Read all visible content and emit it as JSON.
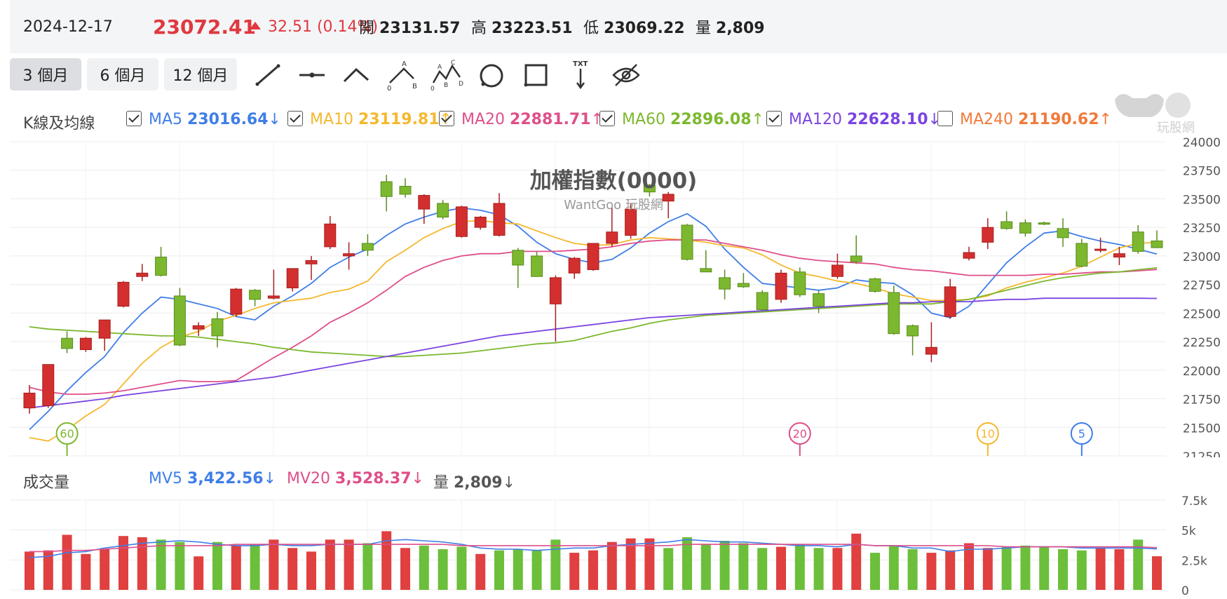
{
  "quote": {
    "date": "2024-12-17",
    "price": "23072.41",
    "change": "32.51 (0.14%)",
    "open_label": "開",
    "open": "23131.57",
    "high_label": "高",
    "high": "23223.51",
    "low_label": "低",
    "low": "23069.22",
    "volume_label": "量",
    "volume": "2,809",
    "up_color": "#e0383e"
  },
  "periods": [
    {
      "label": "3 個月",
      "active": true
    },
    {
      "label": "6 個月",
      "active": false
    },
    {
      "label": "12 個月",
      "active": false
    }
  ],
  "tools": [
    "line-tool-icon",
    "horizontal-line-tool-icon",
    "angle-tool-icon",
    "abc-pattern-tool-icon",
    "abcd-pattern-tool-icon",
    "circle-tool-icon",
    "rectangle-tool-icon",
    "text-arrow-tool-icon",
    "hide-drawings-icon"
  ],
  "tool_labels": {
    "abc": [
      "A",
      "0",
      "B"
    ],
    "abcd": [
      "A",
      "C",
      "0",
      "B",
      "D"
    ],
    "txt": "TXT"
  },
  "ma_section": {
    "title": "K線及均線",
    "items": [
      {
        "name": "MA5",
        "value": "23016.64",
        "arrow": "↓",
        "checked": true,
        "color": "#3f7ee8"
      },
      {
        "name": "MA10",
        "value": "23119.81",
        "arrow": "↑",
        "checked": true,
        "color": "#f5b82e"
      },
      {
        "name": "MA20",
        "value": "22881.71",
        "arrow": "↑",
        "checked": true,
        "color": "#de4f8a"
      },
      {
        "name": "MA60",
        "value": "22896.08",
        "arrow": "↑",
        "checked": true,
        "color": "#7cb82f"
      },
      {
        "name": "MA120",
        "value": "22628.10",
        "arrow": "↓",
        "checked": true,
        "color": "#7b44e0"
      },
      {
        "name": "MA240",
        "value": "21190.62",
        "arrow": "↑",
        "checked": false,
        "color": "#f07a3a"
      }
    ]
  },
  "logo_text": "玩股網",
  "volume_section": {
    "title": "成交量",
    "items": [
      {
        "name": "MV5",
        "value": "3,422.56",
        "arrow": "↓",
        "color": "#3f7ee8"
      },
      {
        "name": "MV20",
        "value": "3,528.37",
        "arrow": "↓",
        "color": "#de4f8a"
      },
      {
        "name": "量",
        "value": "2,809",
        "arrow": "↓",
        "color": "#555555"
      }
    ]
  },
  "chart_data": {
    "type": "candlestick",
    "title": "加權指數(0000)",
    "subtitle": "WantGoo 玩股網",
    "y_ticks": [
      "24000",
      "23750",
      "23500",
      "23250",
      "23000",
      "22750",
      "22500",
      "22250",
      "22000",
      "21750",
      "21500",
      "21250"
    ],
    "ylim": [
      21250,
      24000
    ],
    "up_color": "#d32f2f",
    "down_color": "#7cb82f",
    "candles": [
      {
        "o": 21670,
        "h": 21870,
        "l": 21620,
        "c": 21800
      },
      {
        "o": 21690,
        "h": 22050,
        "l": 21670,
        "c": 22050
      },
      {
        "o": 22280,
        "h": 22340,
        "l": 22150,
        "c": 22190
      },
      {
        "o": 22180,
        "h": 22290,
        "l": 22160,
        "c": 22280
      },
      {
        "o": 22280,
        "h": 22440,
        "l": 22170,
        "c": 22440
      },
      {
        "o": 22560,
        "h": 22780,
        "l": 22550,
        "c": 22770
      },
      {
        "o": 22820,
        "h": 22930,
        "l": 22780,
        "c": 22850
      },
      {
        "o": 22990,
        "h": 23080,
        "l": 22820,
        "c": 22830
      },
      {
        "o": 22650,
        "h": 22720,
        "l": 22210,
        "c": 22220
      },
      {
        "o": 22360,
        "h": 22420,
        "l": 22300,
        "c": 22390
      },
      {
        "o": 22450,
        "h": 22510,
        "l": 22200,
        "c": 22300
      },
      {
        "o": 22490,
        "h": 22720,
        "l": 22470,
        "c": 22710
      },
      {
        "o": 22700,
        "h": 22710,
        "l": 22560,
        "c": 22620
      },
      {
        "o": 22630,
        "h": 22880,
        "l": 22620,
        "c": 22650
      },
      {
        "o": 22720,
        "h": 22890,
        "l": 22690,
        "c": 22890
      },
      {
        "o": 22930,
        "h": 23000,
        "l": 22790,
        "c": 22960
      },
      {
        "o": 23080,
        "h": 23350,
        "l": 23060,
        "c": 23280
      },
      {
        "o": 23000,
        "h": 23120,
        "l": 22880,
        "c": 23020
      },
      {
        "o": 23110,
        "h": 23190,
        "l": 23000,
        "c": 23050
      },
      {
        "o": 23650,
        "h": 23710,
        "l": 23390,
        "c": 23520
      },
      {
        "o": 23610,
        "h": 23680,
        "l": 23510,
        "c": 23540
      },
      {
        "o": 23410,
        "h": 23540,
        "l": 23280,
        "c": 23530
      },
      {
        "o": 23460,
        "h": 23490,
        "l": 23320,
        "c": 23340
      },
      {
        "o": 23170,
        "h": 23440,
        "l": 23160,
        "c": 23430
      },
      {
        "o": 23250,
        "h": 23350,
        "l": 23230,
        "c": 23340
      },
      {
        "o": 23180,
        "h": 23550,
        "l": 23170,
        "c": 23460
      },
      {
        "o": 23050,
        "h": 23070,
        "l": 22720,
        "c": 22920
      },
      {
        "o": 23000,
        "h": 23040,
        "l": 22820,
        "c": 22820
      },
      {
        "o": 22580,
        "h": 22830,
        "l": 22250,
        "c": 22810
      },
      {
        "o": 22850,
        "h": 22990,
        "l": 22800,
        "c": 22980
      },
      {
        "o": 22880,
        "h": 23110,
        "l": 22870,
        "c": 23110
      },
      {
        "o": 23110,
        "h": 23420,
        "l": 23080,
        "c": 23210
      },
      {
        "o": 23180,
        "h": 23460,
        "l": 23150,
        "c": 23410
      },
      {
        "o": 23620,
        "h": 23630,
        "l": 23520,
        "c": 23560
      },
      {
        "o": 23480,
        "h": 23560,
        "l": 23330,
        "c": 23540
      },
      {
        "o": 23270,
        "h": 23280,
        "l": 22960,
        "c": 22970
      },
      {
        "o": 22890,
        "h": 23050,
        "l": 22880,
        "c": 22860
      },
      {
        "o": 22810,
        "h": 22880,
        "l": 22620,
        "c": 22710
      },
      {
        "o": 22760,
        "h": 22850,
        "l": 22720,
        "c": 22730
      },
      {
        "o": 22680,
        "h": 22700,
        "l": 22520,
        "c": 22530
      },
      {
        "o": 22620,
        "h": 22880,
        "l": 22590,
        "c": 22850
      },
      {
        "o": 22860,
        "h": 22900,
        "l": 22640,
        "c": 22660
      },
      {
        "o": 22670,
        "h": 22700,
        "l": 22500,
        "c": 22560
      },
      {
        "o": 22820,
        "h": 23020,
        "l": 22800,
        "c": 22920
      },
      {
        "o": 23000,
        "h": 23180,
        "l": 22930,
        "c": 22950
      },
      {
        "o": 22800,
        "h": 22810,
        "l": 22680,
        "c": 22690
      },
      {
        "o": 22680,
        "h": 22740,
        "l": 22310,
        "c": 22320
      },
      {
        "o": 22390,
        "h": 22400,
        "l": 22130,
        "c": 22300
      },
      {
        "o": 22140,
        "h": 22420,
        "l": 22070,
        "c": 22200
      },
      {
        "o": 22470,
        "h": 22800,
        "l": 22450,
        "c": 22730
      },
      {
        "o": 22980,
        "h": 23080,
        "l": 22960,
        "c": 23030
      },
      {
        "o": 23120,
        "h": 23330,
        "l": 23060,
        "c": 23250
      },
      {
        "o": 23300,
        "h": 23390,
        "l": 23230,
        "c": 23240
      },
      {
        "o": 23290,
        "h": 23320,
        "l": 23170,
        "c": 23200
      },
      {
        "o": 23290,
        "h": 23300,
        "l": 23270,
        "c": 23280
      },
      {
        "o": 23240,
        "h": 23330,
        "l": 23080,
        "c": 23160
      },
      {
        "o": 23110,
        "h": 23150,
        "l": 22900,
        "c": 22910
      },
      {
        "o": 23050,
        "h": 23160,
        "l": 23030,
        "c": 23060
      },
      {
        "o": 22990,
        "h": 23080,
        "l": 22920,
        "c": 23020
      },
      {
        "o": 23210,
        "h": 23270,
        "l": 23020,
        "c": 23040
      },
      {
        "o": 23131.57,
        "h": 23223.51,
        "l": 23069.22,
        "c": 23072.41
      }
    ],
    "ma_lines": [
      {
        "name": "MA5",
        "color": "#3f7ee8",
        "values": [
          21480,
          21640,
          21820,
          21980,
          22120,
          22330,
          22500,
          22640,
          22620,
          22580,
          22540,
          22470,
          22440,
          22560,
          22650,
          22760,
          22900,
          22990,
          23060,
          23180,
          23280,
          23340,
          23390,
          23420,
          23400,
          23360,
          23260,
          23120,
          23020,
          22970,
          22940,
          22970,
          23070,
          23200,
          23300,
          23370,
          23260,
          23060,
          22900,
          22760,
          22740,
          22720,
          22700,
          22720,
          22790,
          22770,
          22760,
          22660,
          22500,
          22460,
          22560,
          22750,
          22940,
          23080,
          23200,
          23220,
          23170,
          23130,
          23100,
          23060,
          23016.64
        ]
      },
      {
        "name": "MA10",
        "color": "#f5b82e",
        "values": [
          21410,
          21380,
          21480,
          21600,
          21700,
          21880,
          22060,
          22200,
          22290,
          22340,
          22430,
          22480,
          22540,
          22590,
          22610,
          22630,
          22680,
          22710,
          22780,
          22950,
          23050,
          23160,
          23240,
          23300,
          23310,
          23290,
          23280,
          23220,
          23160,
          23110,
          23090,
          23100,
          23140,
          23160,
          23150,
          23140,
          23120,
          23090,
          23070,
          23010,
          22920,
          22850,
          22820,
          22780,
          22760,
          22720,
          22670,
          22640,
          22610,
          22610,
          22620,
          22650,
          22720,
          22770,
          22810,
          22850,
          22910,
          22990,
          23070,
          23110,
          23119.81
        ]
      },
      {
        "name": "MA20",
        "color": "#de4f8a",
        "values": [
          21850,
          21810,
          21790,
          21790,
          21800,
          21820,
          21850,
          21880,
          21910,
          21900,
          21900,
          21910,
          22010,
          22110,
          22200,
          22300,
          22420,
          22500,
          22590,
          22700,
          22820,
          22900,
          22960,
          23000,
          23020,
          23020,
          23040,
          23040,
          23040,
          23050,
          23060,
          23080,
          23110,
          23130,
          23140,
          23140,
          23140,
          23110,
          23080,
          23050,
          23010,
          22980,
          22960,
          22950,
          22940,
          22930,
          22900,
          22880,
          22870,
          22850,
          22830,
          22830,
          22830,
          22830,
          22840,
          22840,
          22850,
          22860,
          22860,
          22870,
          22881.71
        ]
      },
      {
        "name": "MA60",
        "color": "#7cb82f",
        "values": [
          22380,
          22360,
          22350,
          22340,
          22330,
          22320,
          22310,
          22300,
          22300,
          22290,
          22270,
          22250,
          22230,
          22200,
          22180,
          22160,
          22150,
          22140,
          22130,
          22120,
          22120,
          22130,
          22140,
          22150,
          22170,
          22190,
          22210,
          22230,
          22240,
          22260,
          22300,
          22340,
          22370,
          22410,
          22440,
          22460,
          22480,
          22490,
          22500,
          22510,
          22520,
          22530,
          22540,
          22550,
          22560,
          22570,
          22580,
          22580,
          22580,
          22600,
          22620,
          22660,
          22700,
          22740,
          22780,
          22810,
          22830,
          22850,
          22860,
          22880,
          22896.08
        ]
      },
      {
        "name": "MA120",
        "color": "#7b44e0",
        "values": [
          21670,
          21690,
          21710,
          21730,
          21750,
          21780,
          21800,
          21820,
          21840,
          21860,
          21880,
          21900,
          21920,
          21940,
          21970,
          22000,
          22030,
          22060,
          22090,
          22120,
          22150,
          22180,
          22210,
          22240,
          22270,
          22300,
          22320,
          22340,
          22360,
          22380,
          22400,
          22420,
          22440,
          22460,
          22470,
          22480,
          22490,
          22500,
          22510,
          22520,
          22530,
          22540,
          22550,
          22560,
          22570,
          22580,
          22590,
          22590,
          22600,
          22600,
          22600,
          22610,
          22620,
          22620,
          22630,
          22630,
          22630,
          22630,
          22630,
          22630,
          22628.1
        ]
      }
    ],
    "markers": [
      {
        "label": "60",
        "series": "MA60",
        "index": 2,
        "color": "#7cb82f"
      },
      {
        "label": "20",
        "series": "MA20",
        "index": 41,
        "color": "#de4f8a"
      },
      {
        "label": "10",
        "series": "MA10",
        "index": 51,
        "color": "#f5b82e"
      },
      {
        "label": "5",
        "series": "MA5",
        "index": 56,
        "color": "#3f7ee8"
      }
    ],
    "volume": {
      "y_ticks": [
        "7.5k",
        "5k",
        "2.5k",
        "0"
      ],
      "ylim": [
        0,
        7500
      ],
      "bars": [
        3200,
        3300,
        4600,
        3000,
        3400,
        4500,
        4400,
        4200,
        4000,
        2800,
        4000,
        3700,
        3800,
        4200,
        3500,
        3200,
        4200,
        4200,
        3900,
        4900,
        3500,
        3700,
        3400,
        3600,
        3000,
        3300,
        3400,
        3300,
        4200,
        3100,
        3300,
        4000,
        4300,
        4300,
        3500,
        4400,
        3800,
        4100,
        3900,
        3500,
        3600,
        3800,
        3500,
        3500,
        4700,
        3100,
        3700,
        3400,
        3100,
        3300,
        3900,
        3500,
        3600,
        3700,
        3600,
        3400,
        3300,
        3500,
        3400,
        4200,
        2809
      ],
      "up": [
        true,
        true,
        true,
        true,
        true,
        true,
        true,
        false,
        false,
        true,
        false,
        true,
        false,
        true,
        true,
        true,
        true,
        true,
        false,
        true,
        true,
        false,
        false,
        false,
        true,
        false,
        false,
        false,
        false,
        true,
        true,
        true,
        true,
        true,
        false,
        false,
        false,
        false,
        false,
        false,
        true,
        false,
        false,
        true,
        true,
        false,
        false,
        false,
        true,
        true,
        true,
        true,
        false,
        false,
        false,
        false,
        false,
        true,
        true,
        false,
        true
      ],
      "mv_lines": [
        {
          "name": "MV5",
          "color": "#3f7ee8",
          "values": [
            2700,
            2800,
            3100,
            3200,
            3500,
            3700,
            3900,
            4000,
            4100,
            4000,
            3800,
            3700,
            3700,
            3800,
            3700,
            3700,
            3800,
            3800,
            3800,
            4100,
            4200,
            4100,
            4000,
            3800,
            3500,
            3400,
            3400,
            3300,
            3400,
            3500,
            3500,
            3700,
            3800,
            3900,
            4000,
            4200,
            4100,
            4000,
            4000,
            3900,
            3800,
            3700,
            3700,
            3600,
            3800,
            3700,
            3700,
            3500,
            3500,
            3200,
            3400,
            3400,
            3500,
            3600,
            3600,
            3600,
            3500,
            3500,
            3500,
            3500,
            3422.56
          ]
        },
        {
          "name": "MV20",
          "color": "#de4f8a",
          "values": [
            3200,
            3200,
            3300,
            3300,
            3400,
            3500,
            3600,
            3700,
            3700,
            3700,
            3700,
            3800,
            3800,
            3800,
            3800,
            3800,
            3800,
            3800,
            3800,
            3800,
            3800,
            3800,
            3800,
            3700,
            3700,
            3700,
            3700,
            3700,
            3700,
            3700,
            3700,
            3700,
            3700,
            3700,
            3700,
            3800,
            3800,
            3800,
            3800,
            3800,
            3800,
            3800,
            3800,
            3800,
            3800,
            3700,
            3700,
            3700,
            3700,
            3700,
            3700,
            3700,
            3600,
            3600,
            3600,
            3600,
            3600,
            3600,
            3600,
            3600,
            3528.37
          ]
        }
      ]
    }
  }
}
